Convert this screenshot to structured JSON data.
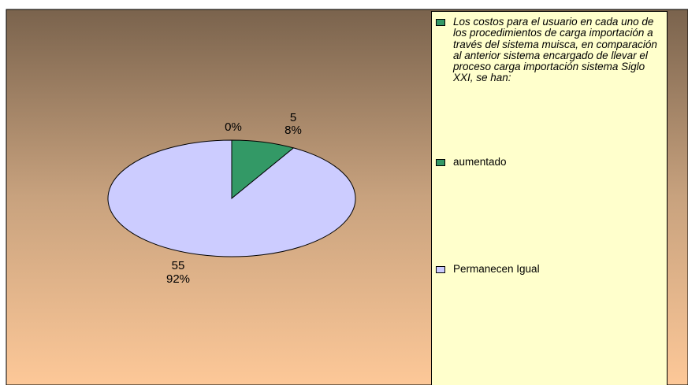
{
  "chart_data": {
    "type": "pie",
    "categories": [
      "Los costos  para el usuario  en cada uno de los  procedimientos  de  carga importación a través del sistema muisca, en comparación al anterior sistema encargado de llevar el proceso carga importación  sistema Siglo XXI,  se han:",
      "aumentado",
      "Permanecen Igual"
    ],
    "values": [
      0,
      5,
      55
    ],
    "value_labels": [
      null,
      "5",
      "55"
    ],
    "percent_labels": [
      "0%",
      "8%",
      "92%"
    ],
    "colors": [
      "#339966",
      "#339966",
      "#ccccff"
    ]
  }
}
